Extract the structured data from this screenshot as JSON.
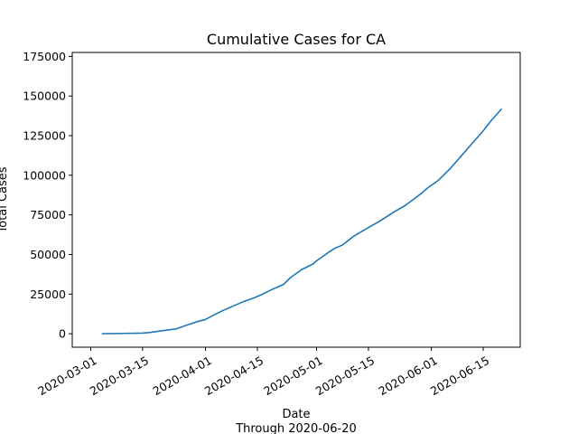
{
  "chart_data": {
    "type": "line",
    "title": "Cumulative Cases for CA",
    "xlabel": "Date",
    "xlabel_sub": "Through 2020-06-20",
    "ylabel": "Total Cases",
    "x_ticks": [
      "2020-03-01",
      "2020-03-15",
      "2020-04-01",
      "2020-04-15",
      "2020-05-01",
      "2020-05-15",
      "2020-06-01",
      "2020-06-15"
    ],
    "y_ticks": [
      0,
      25000,
      50000,
      75000,
      100000,
      125000,
      150000,
      175000
    ],
    "y_tick_labels": [
      "0",
      "25000",
      "50000",
      "75000",
      "100000",
      "125000",
      "150000",
      "175000"
    ],
    "xlim": [
      "2020-02-25",
      "2020-06-25"
    ],
    "ylim": [
      -8500,
      177500
    ],
    "grid": false,
    "series": [
      {
        "color": "#1f77b4",
        "x": [
          "2020-03-04",
          "2020-03-10",
          "2020-03-15",
          "2020-03-17",
          "2020-03-20",
          "2020-03-24",
          "2020-03-27",
          "2020-03-30",
          "2020-04-01",
          "2020-04-03",
          "2020-04-06",
          "2020-04-08",
          "2020-04-11",
          "2020-04-14",
          "2020-04-16",
          "2020-04-19",
          "2020-04-22",
          "2020-04-24",
          "2020-04-27",
          "2020-04-30",
          "2020-05-01",
          "2020-05-04",
          "2020-05-06",
          "2020-05-08",
          "2020-05-11",
          "2020-05-15",
          "2020-05-18",
          "2020-05-22",
          "2020-05-25",
          "2020-05-29",
          "2020-05-31",
          "2020-06-03",
          "2020-06-06",
          "2020-06-09",
          "2020-06-12",
          "2020-06-15",
          "2020-06-17",
          "2020-06-20"
        ],
        "y": [
          0,
          200,
          400,
          800,
          1800,
          3000,
          5500,
          7800,
          9000,
          11500,
          15000,
          17000,
          20000,
          22500,
          24500,
          28000,
          31000,
          35500,
          40500,
          44000,
          46000,
          51000,
          54000,
          56000,
          61500,
          67000,
          71000,
          77000,
          81000,
          88000,
          92000,
          97000,
          104000,
          112000,
          120000,
          128000,
          134000,
          142000
        ]
      }
    ]
  }
}
